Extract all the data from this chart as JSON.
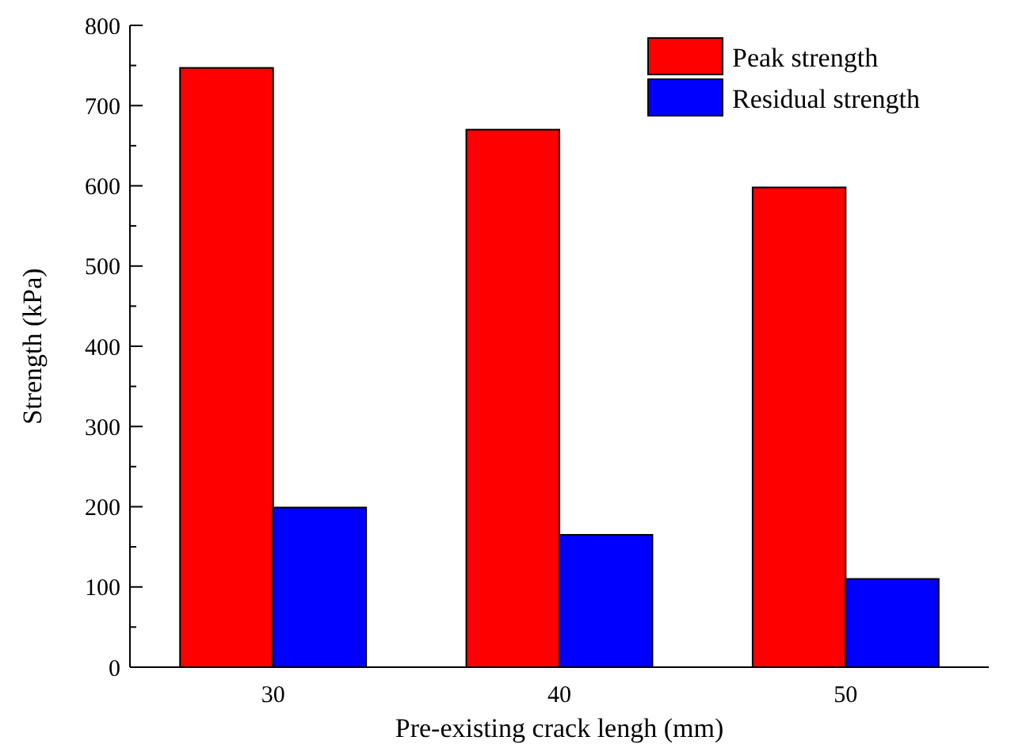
{
  "chart_data": {
    "type": "bar",
    "xlabel": "Pre-existing crack lengh (mm)",
    "ylabel": "Strength (kPa)",
    "categories": [
      "30",
      "40",
      "50"
    ],
    "series": [
      {
        "name": "Peak strength",
        "color": "#ff0000",
        "values": [
          747,
          670,
          598
        ]
      },
      {
        "name": "Residual strength",
        "color": "#0000ff",
        "values": [
          199,
          165,
          110
        ]
      }
    ],
    "ylim": [
      0,
      800
    ],
    "yticks": [
      0,
      100,
      200,
      300,
      400,
      500,
      600,
      700,
      800
    ],
    "grid": false,
    "legend": "top right"
  }
}
